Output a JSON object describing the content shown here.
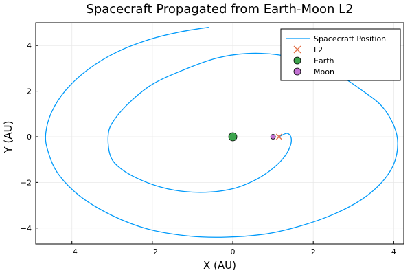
{
  "chart_data": {
    "type": "line",
    "title": "Spacecraft Propagated from Earth-Moon L2",
    "xlabel": "X (AU)",
    "ylabel": "Y (AU)",
    "xlim": [
      -4.9,
      4.25
    ],
    "ylim": [
      -4.7,
      5.0
    ],
    "xticks": [
      -4,
      -2,
      0,
      2,
      4
    ],
    "yticks": [
      -4,
      -2,
      0,
      2,
      4
    ],
    "xtick_labels": [
      "−4",
      "−2",
      "0",
      "2",
      "4"
    ],
    "ytick_labels": [
      "−4",
      "−2",
      "0",
      "2",
      "4"
    ],
    "grid": true,
    "legend_position": "top-right",
    "series": [
      {
        "name": "Spacecraft Position",
        "kind": "line",
        "color": "#009AFA",
        "x": [
          1.15,
          1.35,
          1.45,
          1.42,
          1.25,
          0.95,
          0.55,
          0.05,
          -0.55,
          -1.2,
          -1.8,
          -2.4,
          -2.85,
          -3.05,
          -3.1,
          -3.0,
          -2.6,
          -2.0,
          -1.2,
          -0.4,
          0.35,
          1.1,
          1.9,
          2.6,
          3.2,
          3.7,
          4.0,
          4.1,
          4.0,
          3.7,
          3.2,
          2.5,
          1.7,
          0.85,
          -0.15,
          -1.1,
          -2.1,
          -3.0,
          -3.8,
          -4.35,
          -4.6,
          -4.65,
          -4.5,
          -4.15,
          -3.6,
          -2.9,
          -2.1,
          -1.3,
          -0.6
        ],
        "y": [
          0.0,
          0.15,
          -0.05,
          -0.45,
          -0.95,
          -1.45,
          -1.9,
          -2.25,
          -2.42,
          -2.4,
          -2.2,
          -1.8,
          -1.3,
          -0.8,
          0.0,
          0.6,
          1.45,
          2.3,
          2.95,
          3.45,
          3.65,
          3.6,
          3.3,
          2.75,
          2.05,
          1.35,
          0.5,
          -0.3,
          -1.2,
          -2.0,
          -2.75,
          -3.4,
          -3.9,
          -4.25,
          -4.4,
          -4.35,
          -4.05,
          -3.45,
          -2.6,
          -1.6,
          -0.6,
          0.15,
          1.1,
          2.05,
          2.95,
          3.7,
          4.25,
          4.6,
          4.8
        ]
      },
      {
        "name": "L2",
        "kind": "x-marker",
        "color": "#E26F46",
        "x": [
          1.15
        ],
        "y": [
          0.0
        ]
      },
      {
        "name": "Earth",
        "kind": "circle-marker",
        "color": "#3DA44D",
        "x": [
          0.0
        ],
        "y": [
          0.0
        ]
      },
      {
        "name": "Moon",
        "kind": "circle-marker",
        "color": "#C271D2",
        "x": [
          1.0
        ],
        "y": [
          0.0
        ]
      }
    ]
  }
}
